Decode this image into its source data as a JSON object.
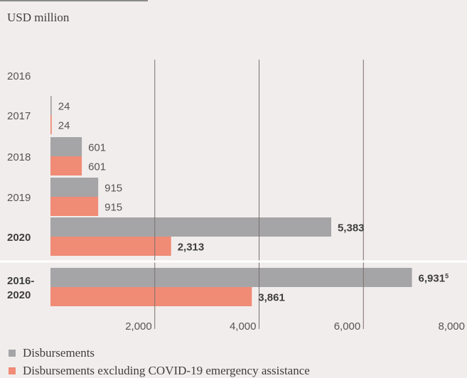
{
  "unit_label": "USD million",
  "colors": {
    "disbursements": "#a5a5a7",
    "excluding": "#f08b76",
    "grid": "#7a6f6d",
    "separator": "#ffffff"
  },
  "legend": [
    {
      "label": "Disbursements",
      "color": "#a5a5a7"
    },
    {
      "label": "Disbursements excluding COVID-19 emergency assistance",
      "color": "#f08b76"
    }
  ],
  "chart_data": {
    "type": "bar",
    "orientation": "horizontal",
    "title": "",
    "ylabel": "USD million",
    "categories": [
      "2016",
      "2017",
      "2018",
      "2019",
      "2020",
      "2016-\n2020"
    ],
    "bold_categories": [
      "2020",
      "2016-\n2020"
    ],
    "series": [
      {
        "name": "Disbursements",
        "values": [
          null,
          24,
          601,
          915,
          5383,
          6931
        ],
        "labels": [
          "",
          "24",
          "601",
          "915",
          "5,383",
          "6,931"
        ],
        "label_superscripts": [
          "",
          "",
          "",
          "",
          "",
          "5"
        ]
      },
      {
        "name": "Disbursements excluding COVID-19 emergency assistance",
        "values": [
          null,
          24,
          601,
          915,
          2313,
          3861
        ],
        "labels": [
          "",
          "24",
          "601",
          "915",
          "2,313",
          "3,861"
        ]
      }
    ],
    "xlim": [
      0,
      8000
    ],
    "xticks": [
      2000,
      4000,
      6000,
      8000
    ],
    "xtick_labels": [
      "2,000",
      "4,000",
      "6,000",
      "8,000"
    ],
    "grid": true,
    "legend_position": "bottom"
  }
}
